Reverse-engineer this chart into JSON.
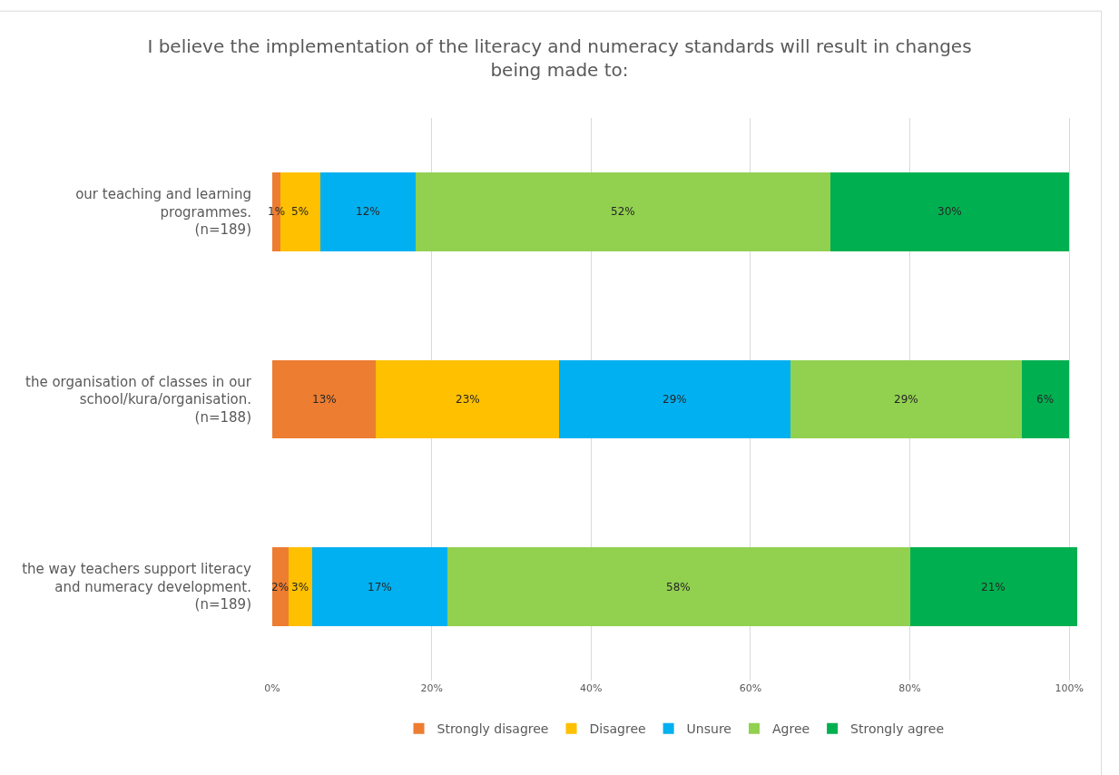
{
  "chart_data": {
    "type": "bar",
    "orientation": "horizontal",
    "stacked": true,
    "title": "I believe the implementation of the literacy and numeracy standards will result in changes being made to:",
    "categories": [
      "our teaching and learning\nprogrammes.\n(n=189)",
      "the organisation of classes in our\nschool/kura/organisation.\n(n=188)",
      "the way teachers support literacy\nand numeracy development.\n(n=189)"
    ],
    "series": [
      {
        "name": "Strongly disagree",
        "color": "#ed7d31",
        "values": [
          1,
          13,
          2
        ],
        "value_labels": [
          "1%",
          "13%",
          "2%"
        ]
      },
      {
        "name": "Disagree",
        "color": "#ffc000",
        "values": [
          5,
          23,
          3
        ],
        "value_labels": [
          "5%",
          "23%",
          "3%"
        ]
      },
      {
        "name": "Unsure",
        "color": "#00b0f0",
        "values": [
          12,
          29,
          17
        ],
        "value_labels": [
          "12%",
          "29%",
          "17%"
        ]
      },
      {
        "name": "Agree",
        "color": "#92d050",
        "values": [
          52,
          29,
          58
        ],
        "value_labels": [
          "52%",
          "29%",
          "58%"
        ]
      },
      {
        "name": "Strongly agree",
        "color": "#00b050",
        "values": [
          30,
          6,
          21
        ],
        "value_labels": [
          "30%",
          "6%",
          "21%"
        ]
      }
    ],
    "xlim": [
      0,
      101
    ],
    "xticks": [
      {
        "value": 0,
        "label": "0%"
      },
      {
        "value": 20,
        "label": "20%"
      },
      {
        "value": 40,
        "label": "40%"
      },
      {
        "value": 60,
        "label": "60%"
      },
      {
        "value": 80,
        "label": "80%"
      },
      {
        "value": 100,
        "label": "100%"
      }
    ],
    "grid": "x",
    "legend": "bottom"
  }
}
